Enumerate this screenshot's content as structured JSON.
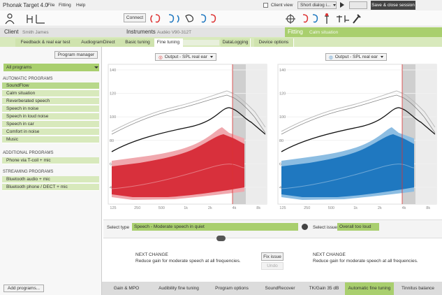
{
  "title_bar": {
    "app": "Phonak Target 4.0",
    "menu": [
      "File",
      "Fitting",
      "Help"
    ],
    "client_view": "Client view",
    "dialog": "Short dialog i...",
    "save": "Save & close session"
  },
  "toolbar": {
    "connect": "Connect"
  },
  "info_bar": {
    "client_label": "Client",
    "client_name": "Smith James",
    "instruments_label": "Instruments",
    "instruments_name": "Audéo V90-312T",
    "fitting_label": "Fitting",
    "fitting_program": "Calm situation"
  },
  "tabs": [
    "Feedback & real ear test",
    "AudiogramDirect",
    "Basic tuning",
    "Fine tuning",
    "DataLogging",
    "Device options"
  ],
  "sidebar": {
    "program_manager": "Program manager",
    "all_programs": "All programs",
    "automatic_heading": "AUTOMATIC PROGRAMS",
    "automatic": [
      "SoundFlow",
      "Calm situation",
      "Reverberated speech",
      "Speech in noise",
      "Speech in loud noise",
      "Speech in car",
      "Comfort in noise",
      "Music"
    ],
    "additional_heading": "ADDITIONAL PROGRAMS",
    "additional": [
      "Phone via T-coil + mic"
    ],
    "streaming_heading": "STREAMING PROGRAMS",
    "streaming": [
      "Bluetooth audio + mic",
      "Bluetooth phone / DECT + mic"
    ],
    "add_programs": "Add programs..."
  },
  "charts": [
    {
      "title": "Output - SPL real ear"
    },
    {
      "title": "Output - SPL real ear"
    }
  ],
  "y_axis_labels": [
    140,
    120,
    100,
    80,
    60,
    40
  ],
  "x_axis_labels": [
    "125",
    "250",
    "500",
    "1k",
    "2k",
    "4k",
    "8k"
  ],
  "select_type": {
    "label": "Select type",
    "value": "Speech - Moderate speech in quiet"
  },
  "select_issue": {
    "label": "Select issue",
    "value": "Overall too loud"
  },
  "next_change": [
    {
      "heading": "NEXT CHANGE",
      "text": "Reduce gain for moderate speech at all frequencies."
    },
    {
      "heading": "NEXT CHANGE",
      "text": "Reduce gain for moderate speech at all frequencies."
    }
  ],
  "fix_issue": "Fix issue",
  "undo": "Undo",
  "bottom_tabs": [
    "Gain & MPO",
    "Audibility fine tuning",
    "Program options",
    "SoundRecover",
    "TK/Gain 35 dB",
    "Automatic fine tuning",
    "Tinnitus balance"
  ]
}
